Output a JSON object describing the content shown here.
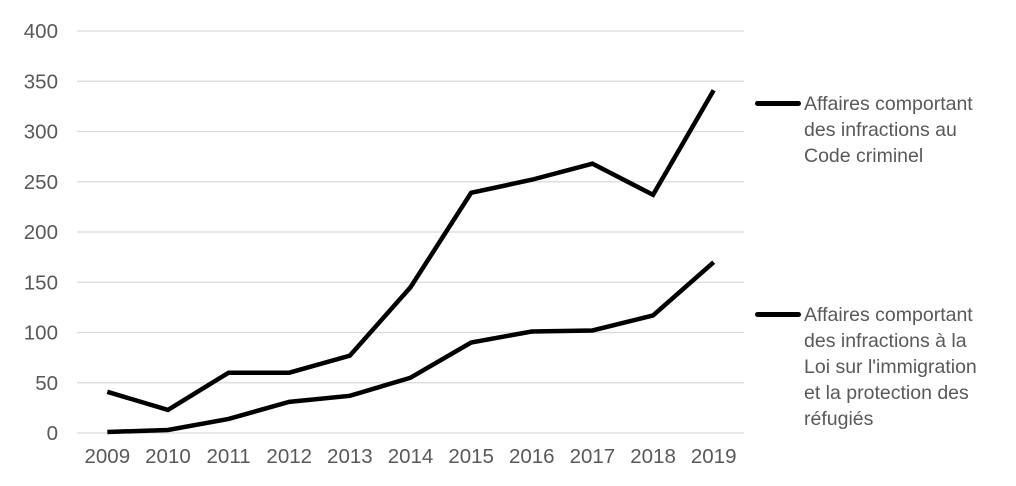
{
  "chart_data": {
    "type": "line",
    "title": "",
    "xlabel": "",
    "ylabel": "",
    "categories": [
      "2009",
      "2010",
      "2011",
      "2012",
      "2013",
      "2014",
      "2015",
      "2016",
      "2017",
      "2018",
      "2019"
    ],
    "series": [
      {
        "name": "Affaires comportant des infractions au Code criminel",
        "values": [
          41,
          23,
          60,
          60,
          77,
          145,
          239,
          252,
          268,
          237,
          341
        ],
        "color": "#000000"
      },
      {
        "name": "Affaires comportant des infractions à la Loi sur l'immigration et la protection des réfugiés",
        "values": [
          1,
          3,
          14,
          31,
          37,
          55,
          90,
          101,
          102,
          117,
          170
        ],
        "color": "#000000"
      }
    ],
    "ylim": [
      0,
      400
    ],
    "y_ticks": [
      0,
      50,
      100,
      150,
      200,
      250,
      300,
      350,
      400
    ],
    "y_tick_labels": [
      "0",
      "50",
      "100",
      "150",
      "200",
      "250",
      "300",
      "350",
      "400"
    ],
    "grid": "horizontal",
    "legend_position": "right"
  },
  "legend": {
    "entries": [
      {
        "label": "Affaires comportant\ndes infractions au\nCode criminel"
      },
      {
        "label": "Affaires comportant\ndes infractions à la\nLoi sur l'immigration\net la protection des\nréfugiés"
      }
    ]
  },
  "colors": {
    "line": "#000000",
    "grid": "#D9D9D9",
    "label": "#595959",
    "background": "#FFFFFF"
  }
}
